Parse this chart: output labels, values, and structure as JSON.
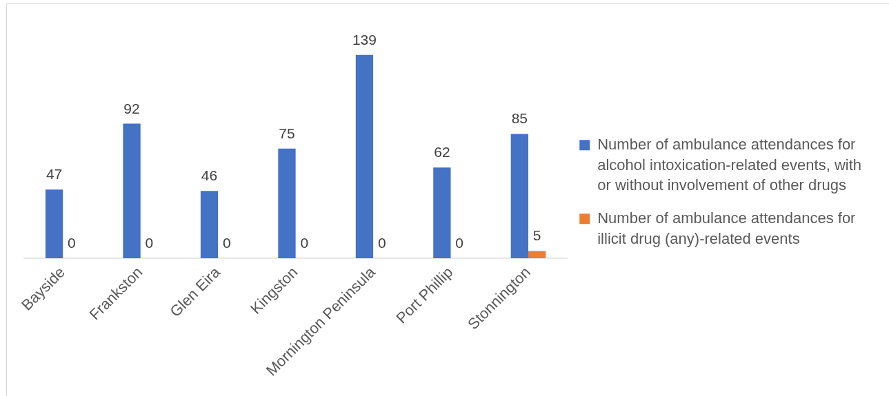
{
  "chart_data": {
    "type": "bar",
    "categories": [
      "Bayside",
      "Frankston",
      "Glen Eira",
      "Kingston",
      "Mornington Peninsula",
      "Port Phillip",
      "Stonnington"
    ],
    "series": [
      {
        "name": "Number of ambulance attendances for alcohol intoxication-related events, with or without involvement of other drugs",
        "color": "#4472c4",
        "values": [
          47,
          92,
          46,
          75,
          139,
          62,
          85
        ]
      },
      {
        "name": "Number of ambulance attendances for illicit drug (any)-related events",
        "color": "#ed7d31",
        "values": [
          0,
          0,
          0,
          0,
          0,
          0,
          5
        ]
      }
    ],
    "data_labels": true,
    "legend": "right",
    "tick_labels": "x"
  }
}
